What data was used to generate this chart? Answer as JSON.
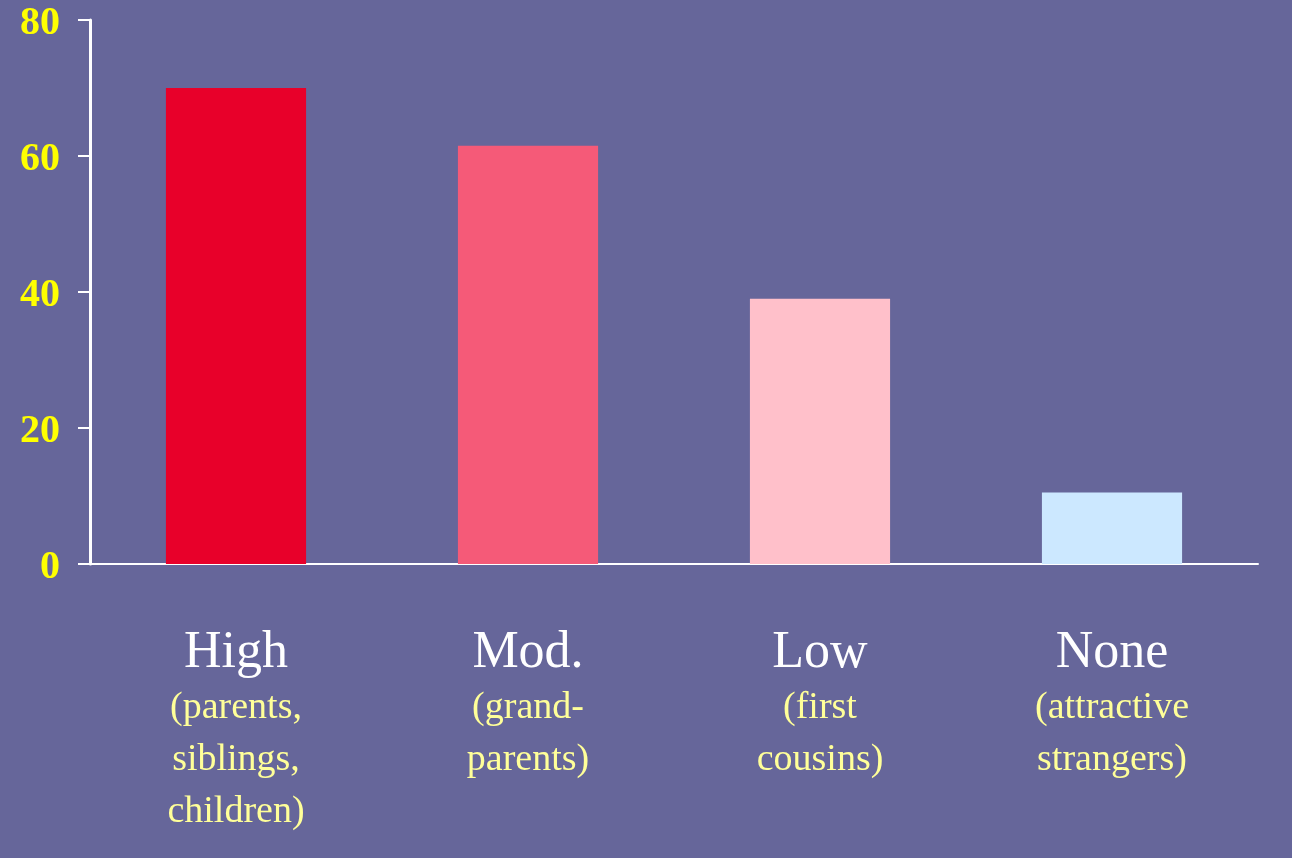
{
  "chart_data": {
    "type": "bar",
    "categories": [
      "High\n(parents,\nsiblings,\nchildren)",
      "Mod.\n(grand-\nparents)",
      "Low\n(first\ncousins)",
      "None\n(attractive\nstrangers)"
    ],
    "values": [
      70,
      61.5,
      39,
      10.5
    ],
    "colors": [
      "#e8002a",
      "#f55a78",
      "#ffc0ca",
      "#cce8ff"
    ],
    "ylim": [
      0,
      80
    ],
    "yticks": [
      0,
      20,
      40,
      60,
      80
    ]
  }
}
